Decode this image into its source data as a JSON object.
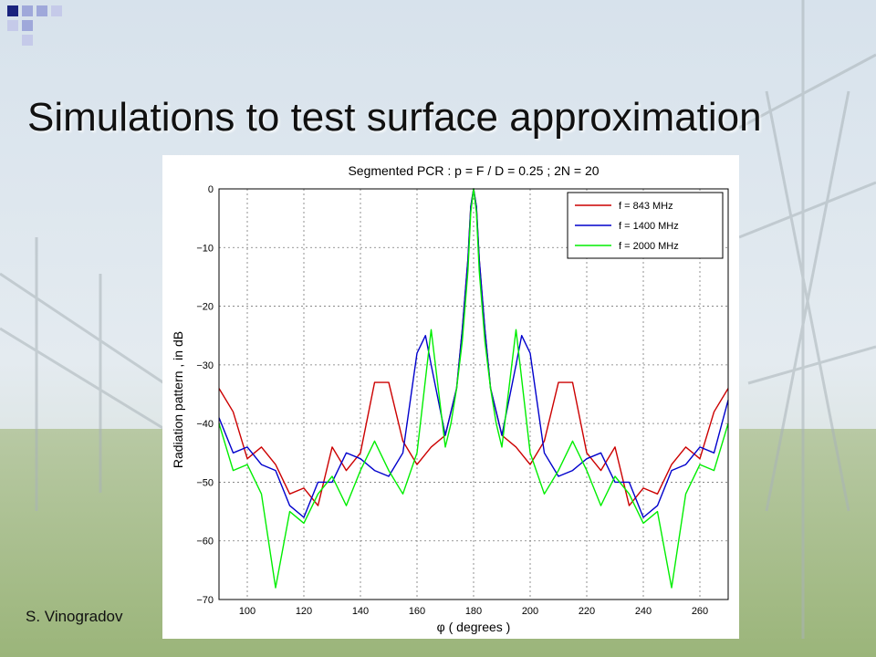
{
  "slide": {
    "title": "Simulations to test surface approximation",
    "author": "S. Vinogradov"
  },
  "colors": {
    "f843": "#cc0000",
    "f1400": "#0000cc",
    "f2000": "#00ee00",
    "corner_dark": "#1a237e",
    "corner_light": "#9fa8da"
  },
  "chart_data": {
    "type": "line",
    "title": "Segmented PCR : p = F / D = 0.25 ; 2N = 20",
    "xlabel": "φ ( degrees )",
    "ylabel": "Radiation pattern , in dB",
    "xlim": [
      90,
      270
    ],
    "ylim": [
      -70,
      0
    ],
    "xticks": [
      100,
      120,
      140,
      160,
      180,
      200,
      220,
      240,
      260
    ],
    "yticks": [
      0,
      -10,
      -20,
      -30,
      -40,
      -50,
      -60,
      -70
    ],
    "grid": true,
    "legend_position": "top-right",
    "series": [
      {
        "name": "f = 843 MHz",
        "color": "#cc0000",
        "x": [
          90,
          95,
          100,
          105,
          110,
          115,
          120,
          125,
          130,
          135,
          140,
          145,
          150,
          155,
          160,
          165,
          170,
          172,
          174,
          176,
          178,
          179,
          180,
          181,
          182,
          184,
          186,
          188,
          190,
          195,
          200,
          205,
          210,
          215,
          220,
          225,
          230,
          235,
          240,
          245,
          250,
          255,
          260,
          265,
          270
        ],
        "y": [
          -34,
          -38,
          -46,
          -44,
          -47,
          -52,
          -51,
          -54,
          -44,
          -48,
          -45,
          -33,
          -33,
          -43,
          -47,
          -44,
          -42,
          -38,
          -34,
          -24,
          -12,
          -3,
          0,
          -3,
          -12,
          -24,
          -34,
          -38,
          -42,
          -44,
          -47,
          -43,
          -33,
          -33,
          -45,
          -48,
          -44,
          -54,
          -51,
          -52,
          -47,
          -44,
          -46,
          -38,
          -34
        ]
      },
      {
        "name": "f = 1400 MHz",
        "color": "#0000cc",
        "x": [
          90,
          95,
          100,
          105,
          110,
          115,
          120,
          125,
          130,
          135,
          140,
          145,
          150,
          155,
          160,
          163,
          165,
          170,
          172,
          174,
          176,
          178,
          179,
          180,
          181,
          182,
          184,
          186,
          188,
          190,
          195,
          197,
          200,
          205,
          210,
          215,
          220,
          225,
          230,
          235,
          240,
          245,
          250,
          255,
          260,
          265,
          270
        ],
        "y": [
          -39,
          -45,
          -44,
          -47,
          -48,
          -54,
          -56,
          -50,
          -50,
          -45,
          -46,
          -48,
          -49,
          -45,
          -28,
          -25,
          -30,
          -42,
          -38,
          -34,
          -24,
          -12,
          -3,
          0,
          -3,
          -12,
          -24,
          -34,
          -38,
          -42,
          -30,
          -25,
          -28,
          -45,
          -49,
          -48,
          -46,
          -45,
          -50,
          -50,
          -56,
          -54,
          -48,
          -47,
          -44,
          -45,
          -36
        ]
      },
      {
        "name": "f = 2000 MHz",
        "color": "#00ee00",
        "x": [
          90,
          95,
          100,
          105,
          110,
          115,
          120,
          125,
          130,
          135,
          140,
          145,
          150,
          155,
          160,
          165,
          170,
          172,
          174,
          176,
          178,
          179,
          180,
          181,
          182,
          184,
          186,
          188,
          190,
          195,
          200,
          205,
          210,
          215,
          220,
          225,
          230,
          235,
          240,
          245,
          250,
          255,
          260,
          265,
          270
        ],
        "y": [
          -40,
          -48,
          -47,
          -52,
          -68,
          -55,
          -57,
          -52,
          -49,
          -54,
          -48,
          -43,
          -48,
          -52,
          -45,
          -24,
          -44,
          -40,
          -34,
          -26,
          -14,
          -4,
          0,
          -4,
          -14,
          -26,
          -34,
          -40,
          -44,
          -24,
          -45,
          -52,
          -48,
          -43,
          -48,
          -54,
          -49,
          -52,
          -57,
          -55,
          -68,
          -52,
          -47,
          -48,
          -40
        ]
      }
    ]
  }
}
